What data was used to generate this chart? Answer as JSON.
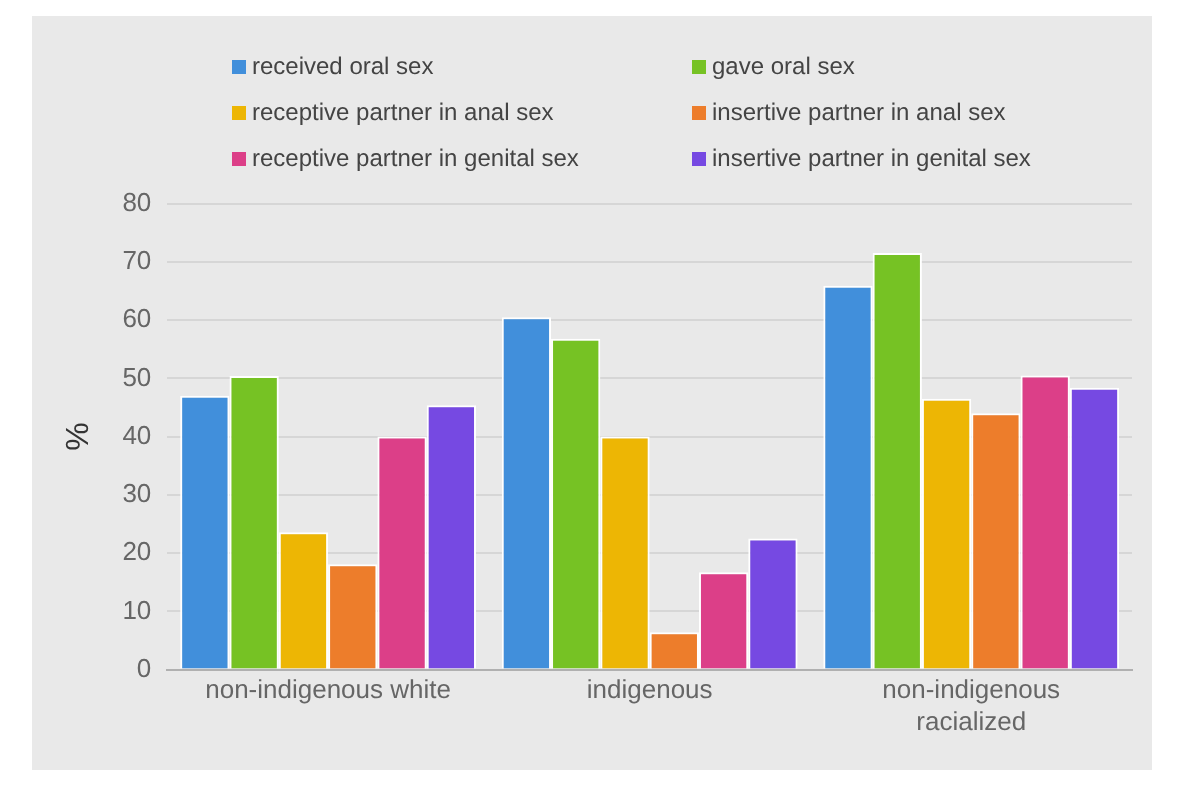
{
  "chart_data": {
    "type": "bar",
    "ylabel": "%",
    "categories": [
      "non-indigenous white",
      "indigenous",
      "non-indigenous racialized"
    ],
    "series": [
      {
        "name": "received oral sex",
        "color": "#418fdb",
        "values": [
          47,
          60.5,
          65.9
        ]
      },
      {
        "name": "gave oral sex",
        "color": "#76c224",
        "values": [
          50.4,
          56.8,
          71.5
        ]
      },
      {
        "name": "receptive partner in anal sex",
        "color": "#edb604",
        "values": [
          23.6,
          40,
          46.5
        ]
      },
      {
        "name": "insertive partner in anal sex",
        "color": "#ed7d2b",
        "values": [
          18.1,
          6.4,
          44
        ]
      },
      {
        "name": "receptive partner in genital sex",
        "color": "#dc3f88",
        "values": [
          40,
          16.7,
          50.5
        ]
      },
      {
        "name": "insertive partner in genital sex",
        "color": "#7649e2",
        "values": [
          45.4,
          22.5,
          48.4
        ]
      }
    ],
    "ylim": [
      0,
      80
    ],
    "yticks": [
      0,
      10,
      20,
      30,
      40,
      50,
      60,
      70,
      80
    ],
    "grid": "y",
    "legend": "top"
  }
}
